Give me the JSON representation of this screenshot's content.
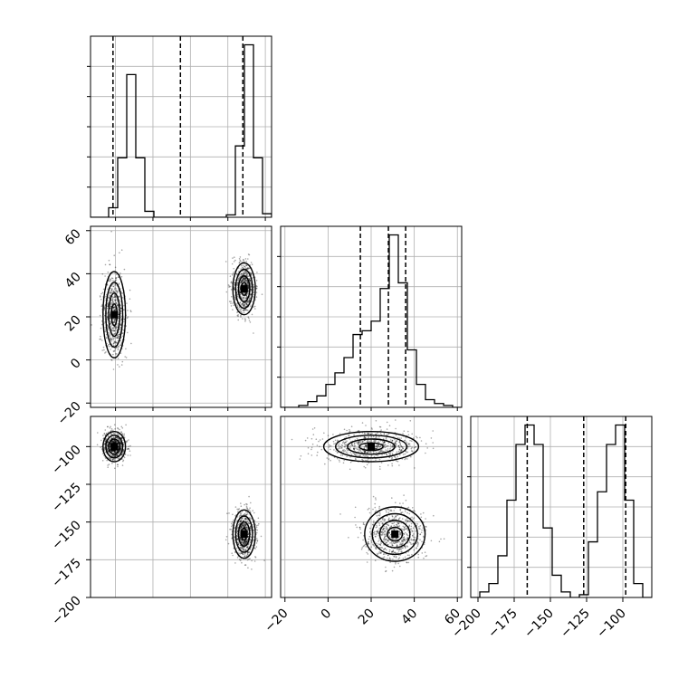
{
  "chart_data": [
    {
      "type": "histogram",
      "panel": "hist-param1",
      "xlim": [
        -2.2,
        0.7
      ],
      "xticks": [
        -1.8,
        -1.2,
        -0.6,
        0.0,
        0.6
      ],
      "bins": [
        -2.2,
        -2.055,
        -1.91,
        -1.765,
        -1.62,
        -1.475,
        -1.33,
        -1.185,
        -1.04,
        -0.895,
        -0.75,
        -0.605,
        -0.46,
        -0.315,
        -0.17,
        -0.025,
        0.12,
        0.265,
        0.41,
        0.555,
        0.7
      ],
      "counts": [
        0,
        0,
        0.08,
        0.5,
        1.2,
        0.5,
        0.05,
        0,
        0,
        0,
        0,
        0,
        0,
        0,
        0,
        0.02,
        0.6,
        1.45,
        0.5,
        0.03
      ],
      "quantiles": [
        -1.84,
        -0.76,
        0.24
      ]
    },
    {
      "type": "scatter-density",
      "panel": "joint-param1-param2",
      "xlim": [
        -2.2,
        0.7
      ],
      "ylim": [
        -22,
        62
      ],
      "yticks": [
        -20,
        0,
        20,
        40,
        60
      ],
      "clusters": [
        {
          "cx": -1.82,
          "cy": 21,
          "sx": 0.09,
          "sy": 10
        },
        {
          "cx": 0.26,
          "cy": 33,
          "sx": 0.09,
          "sy": 6
        }
      ]
    },
    {
      "type": "histogram",
      "panel": "hist-param2",
      "xlim": [
        -22,
        62
      ],
      "bins": [
        -22,
        -17.8,
        -13.6,
        -9.4,
        -5.2,
        -1,
        3.2,
        7.4,
        11.6,
        15.8,
        20,
        24.2,
        28.4,
        32.6,
        36.8,
        41,
        45.2,
        49.4,
        53.6,
        57.8,
        62
      ],
      "counts": [
        0,
        0,
        0.01,
        0.03,
        0.06,
        0.12,
        0.18,
        0.26,
        0.38,
        0.4,
        0.45,
        0.62,
        0.9,
        0.65,
        0.3,
        0.12,
        0.04,
        0.02,
        0.01,
        0
      ],
      "quantiles": [
        15,
        28,
        36
      ]
    },
    {
      "type": "scatter-density",
      "panel": "joint-param1-param3",
      "xlim": [
        -2.2,
        0.7
      ],
      "ylim": [
        -200,
        -80
      ],
      "yticks": [
        -200,
        -175,
        -150,
        -125,
        -100
      ],
      "clusters": [
        {
          "cx": -1.82,
          "cy": -100,
          "sx": 0.09,
          "sy": 5
        },
        {
          "cx": 0.26,
          "cy": -158,
          "sx": 0.09,
          "sy": 8
        }
      ]
    },
    {
      "type": "scatter-density",
      "panel": "joint-param2-param3",
      "xlim": [
        -22,
        62
      ],
      "ylim": [
        -200,
        -80
      ],
      "xticks": [
        -20,
        0,
        20,
        40,
        60
      ],
      "clusters": [
        {
          "cx": 20,
          "cy": -100,
          "sx": 11,
          "sy": 5
        },
        {
          "cx": 31,
          "cy": -158,
          "sx": 7,
          "sy": 9
        }
      ]
    },
    {
      "type": "histogram",
      "panel": "hist-param3",
      "xlim": [
        -205,
        -80
      ],
      "xticks": [
        -200,
        -175,
        -150,
        -125,
        -100
      ],
      "bins": [
        -205,
        -198.75,
        -192.5,
        -186.25,
        -180,
        -173.75,
        -167.5,
        -161.25,
        -155,
        -148.75,
        -142.5,
        -136.25,
        -130,
        -123.75,
        -117.5,
        -111.25,
        -105,
        -98.75,
        -92.5,
        -86.25,
        -80
      ],
      "counts": [
        0,
        0.02,
        0.05,
        0.15,
        0.35,
        0.55,
        0.62,
        0.55,
        0.25,
        0.08,
        0.02,
        0,
        0.01,
        0.2,
        0.38,
        0.55,
        0.62,
        0.35,
        0.05,
        0
      ],
      "quantiles": [
        -166,
        -127,
        -98
      ]
    }
  ]
}
